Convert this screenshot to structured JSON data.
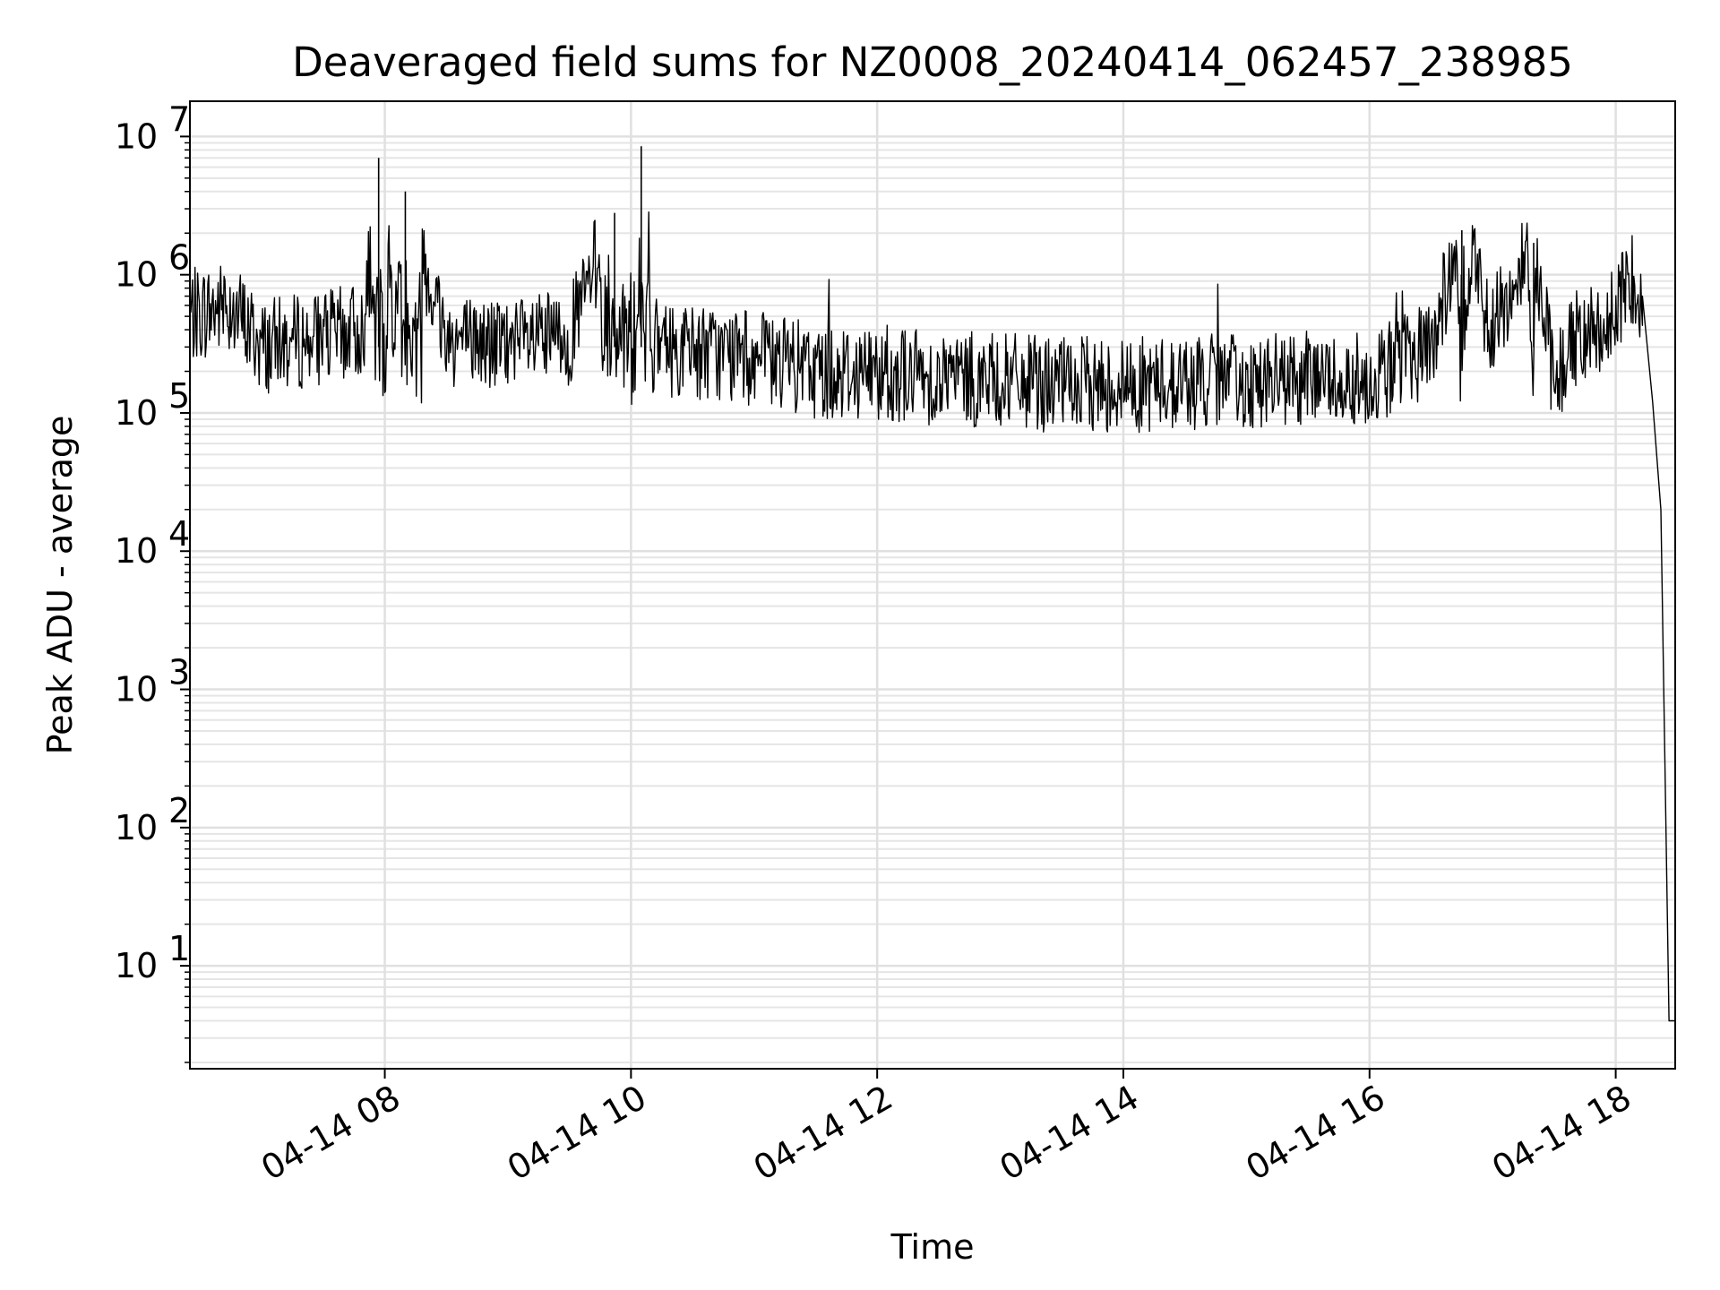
{
  "chart_data": {
    "type": "line",
    "title": "Deaveraged field sums for NZ0008_20240414_062457_238985",
    "xlabel": "Time",
    "ylabel": "Peak ADU - average",
    "y_scale": "log",
    "ylim": [
      1.8,
      18000000
    ],
    "xlim": [
      "2024-04-14T06:25",
      "2024-04-14T18:29"
    ],
    "x_tick_labels": [
      "04-14 08",
      "04-14 10",
      "04-14 12",
      "04-14 14",
      "04-14 16",
      "04-14 18"
    ],
    "x_ticks": [
      "2024-04-14T08:00",
      "2024-04-14T10:00",
      "2024-04-14T12:00",
      "2024-04-14T14:00",
      "2024-04-14T16:00",
      "2024-04-14T18:00"
    ],
    "y_ticks": [
      10,
      100,
      1000,
      10000,
      100000,
      1000000,
      10000000
    ],
    "y_tick_exponents": [
      "1",
      "2",
      "3",
      "4",
      "5",
      "6",
      "7"
    ],
    "y_tick_base": "10",
    "grid": true,
    "line_color": "#000000",
    "series": [
      {
        "x": [
          "2024-04-14T06:25",
          "2024-04-14T06:45",
          "2024-04-14T07:00",
          "2024-04-14T07:30",
          "2024-04-14T07:50",
          "2024-04-14T07:57",
          "2024-04-14T08:05",
          "2024-04-14T08:10",
          "2024-04-14T08:30",
          "2024-04-14T09:00",
          "2024-04-14T09:30",
          "2024-04-14T09:52",
          "2024-04-14T10:05",
          "2024-04-14T10:10",
          "2024-04-14T10:30",
          "2024-04-14T11:00",
          "2024-04-14T11:15",
          "2024-04-14T11:30",
          "2024-04-14T12:00",
          "2024-04-14T12:30",
          "2024-04-14T13:00",
          "2024-04-14T13:30",
          "2024-04-14T14:00",
          "2024-04-14T14:30",
          "2024-04-14T15:00",
          "2024-04-14T15:30",
          "2024-04-14T16:00",
          "2024-04-14T16:30",
          "2024-04-14T16:45",
          "2024-04-14T17:00",
          "2024-04-14T17:20",
          "2024-04-14T17:30",
          "2024-04-14T17:40",
          "2024-04-14T18:00",
          "2024-04-14T18:08",
          "2024-04-14T18:13",
          "2024-04-14T18:18",
          "2024-04-14T18:22",
          "2024-04-14T18:24",
          "2024-04-14T18:26",
          "2024-04-14T18:29"
        ],
        "y": [
          500000,
          600000,
          300000,
          350000,
          400000,
          7000000,
          400000,
          4000000,
          350000,
          300000,
          350000,
          2800000,
          8500000,
          300000,
          280000,
          250000,
          220000,
          200000,
          200000,
          180000,
          170000,
          160000,
          160000,
          165000,
          170000,
          175000,
          180000,
          300000,
          2100000,
          400000,
          1700000,
          160000,
          350000,
          500000,
          1000000,
          700000,
          120000,
          20000,
          300,
          4,
          4
        ]
      }
    ]
  }
}
